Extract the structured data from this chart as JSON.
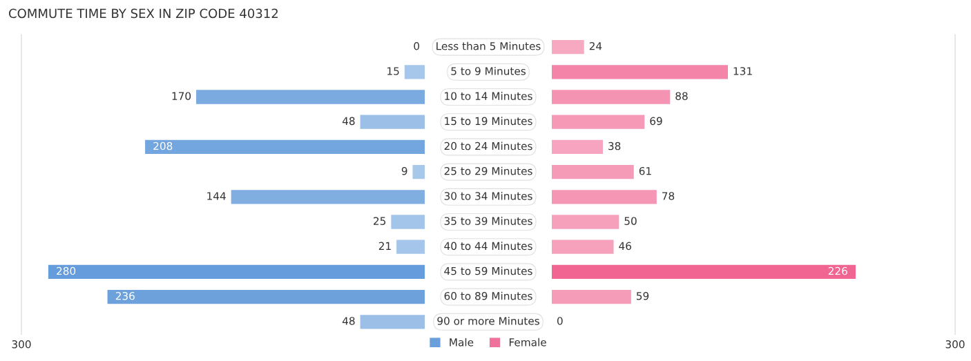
{
  "chart_data": [
    {
      "type": "bar",
      "orientation": "horizontal",
      "title": "COMMUTE TIME BY SEX IN ZIP CODE 40312",
      "categories": [
        "Less than 5 Minutes",
        "5 to 9 Minutes",
        "10 to 14 Minutes",
        "15 to 19 Minutes",
        "20 to 24 Minutes",
        "25 to 29 Minutes",
        "30 to 34 Minutes",
        "35 to 39 Minutes",
        "40 to 44 Minutes",
        "45 to 59 Minutes",
        "60 to 89 Minutes",
        "90 or more Minutes"
      ],
      "xlim": [
        300,
        0
      ],
      "xticks": [
        300
      ],
      "series": [
        {
          "name": "Male",
          "color": "#6a9fdc",
          "values": [
            0,
            15,
            170,
            48,
            208,
            9,
            144,
            25,
            21,
            280,
            236,
            48
          ],
          "colors": [
            "#a9c9eb",
            "#a6c7ea",
            "#7aaae0",
            "#9bbfe7",
            "#73a5de",
            "#a8c8ea",
            "#80aee1",
            "#a3c5e9",
            "#a5c6ea",
            "#659cdb",
            "#6ca1dc",
            "#9bbfe7"
          ]
        }
      ],
      "data_labels": true,
      "legend": "bottom"
    },
    {
      "type": "bar",
      "orientation": "horizontal",
      "categories": [
        null,
        null,
        null,
        null,
        null,
        null,
        null,
        null,
        null,
        null,
        null,
        null
      ],
      "xlim": [
        0,
        300
      ],
      "xticks": [
        300
      ],
      "series": [
        {
          "name": "Female",
          "color": "#f0729c",
          "values": [
            24,
            131,
            88,
            69,
            38,
            61,
            78,
            50,
            46,
            226,
            59,
            0
          ],
          "colors": [
            "#f7a9c2",
            "#f485a9",
            "#f593b3",
            "#f599b7",
            "#f6a4bf",
            "#f59bb8",
            "#f596b4",
            "#f6a0bc",
            "#f6a2bd",
            "#f06592",
            "#f59cb9",
            "#f8b0c8"
          ]
        }
      ],
      "data_labels": true,
      "legend": "bottom",
      "tick_labels": "x"
    }
  ]
}
